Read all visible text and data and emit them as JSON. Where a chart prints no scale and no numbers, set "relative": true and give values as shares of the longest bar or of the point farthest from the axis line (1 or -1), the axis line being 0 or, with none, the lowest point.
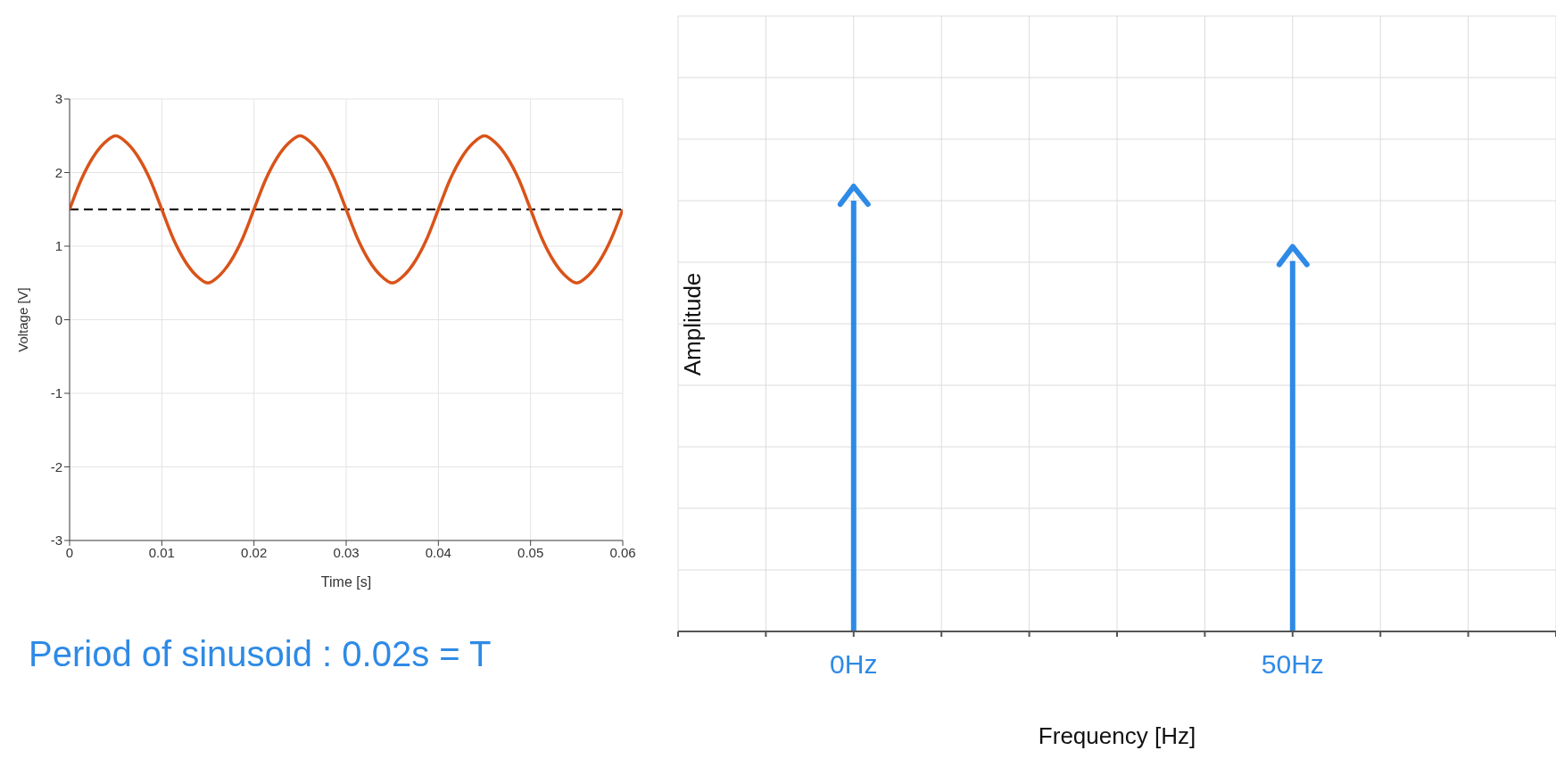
{
  "chart_data": [
    {
      "type": "line",
      "xlabel": "Time [s]",
      "ylabel": "Voltage [V]",
      "x": [
        0,
        0.00125,
        0.0025,
        0.00375,
        0.005,
        0.00625,
        0.0075,
        0.00875,
        0.01,
        0.01125,
        0.0125,
        0.01375,
        0.015,
        0.01625,
        0.0175,
        0.01875,
        0.02,
        0.02125,
        0.0225,
        0.02375,
        0.025,
        0.02625,
        0.0275,
        0.02875,
        0.03,
        0.03125,
        0.0325,
        0.03375,
        0.035,
        0.03625,
        0.0375,
        0.03875,
        0.04,
        0.04125,
        0.0425,
        0.04375,
        0.045,
        0.04625,
        0.0475,
        0.04875,
        0.05,
        0.05125,
        0.0525,
        0.05375,
        0.055,
        0.05625,
        0.0575,
        0.05875,
        0.06
      ],
      "series": [
        {
          "color": "#d95319",
          "values": [
            1.5,
            1.9,
            2.2,
            2.4,
            2.5,
            2.4,
            2.2,
            1.9,
            1.5,
            1.1,
            0.8,
            0.6,
            0.5,
            0.6,
            0.8,
            1.1,
            1.5,
            1.9,
            2.2,
            2.4,
            2.5,
            2.4,
            2.2,
            1.9,
            1.5,
            1.1,
            0.8,
            0.6,
            0.5,
            0.6,
            0.8,
            1.1,
            1.5,
            1.9,
            2.2,
            2.4,
            2.5,
            2.4,
            2.2,
            1.9,
            1.5,
            1.1,
            0.8,
            0.6,
            0.5,
            0.6,
            0.8,
            1.1,
            1.5
          ]
        }
      ],
      "xlim": [
        0,
        0.06
      ],
      "xticks": [
        0,
        0.01,
        0.02,
        0.03,
        0.04,
        0.05,
        0.06
      ],
      "ylim": [
        -3,
        3
      ],
      "yticks": [
        -3,
        -2,
        -1,
        0,
        1,
        2,
        3
      ],
      "grid": true,
      "marker": "none",
      "line_style": "solid",
      "ref_lines": [
        {
          "axis": "y",
          "value": 1.5,
          "color": "#000000",
          "line_style": "dashed"
        }
      ],
      "annotations": [
        "Period of sinusoid : 0.02s = T"
      ]
    },
    {
      "type": "bar",
      "xlabel": "Frequency [Hz]",
      "ylabel": "Amplitude",
      "relative": true,
      "x": [
        0,
        50
      ],
      "series": [
        {
          "color": "#2e8ae6",
          "values": [
            1,
            0.86
          ]
        }
      ],
      "xlim": [
        -20,
        80
      ],
      "xticks": [
        {
          "value": -20,
          "label": null
        },
        {
          "value": -10,
          "label": null
        },
        {
          "value": 0,
          "label": "0Hz"
        },
        {
          "value": 10,
          "label": null
        },
        {
          "value": 20,
          "label": null
        },
        {
          "value": 30,
          "label": null
        },
        {
          "value": 40,
          "label": null
        },
        {
          "value": 50,
          "label": "50Hz"
        },
        {
          "value": 60,
          "label": null
        },
        {
          "value": 70,
          "label": null
        },
        {
          "value": 80,
          "label": null
        }
      ],
      "grid": true
    }
  ]
}
